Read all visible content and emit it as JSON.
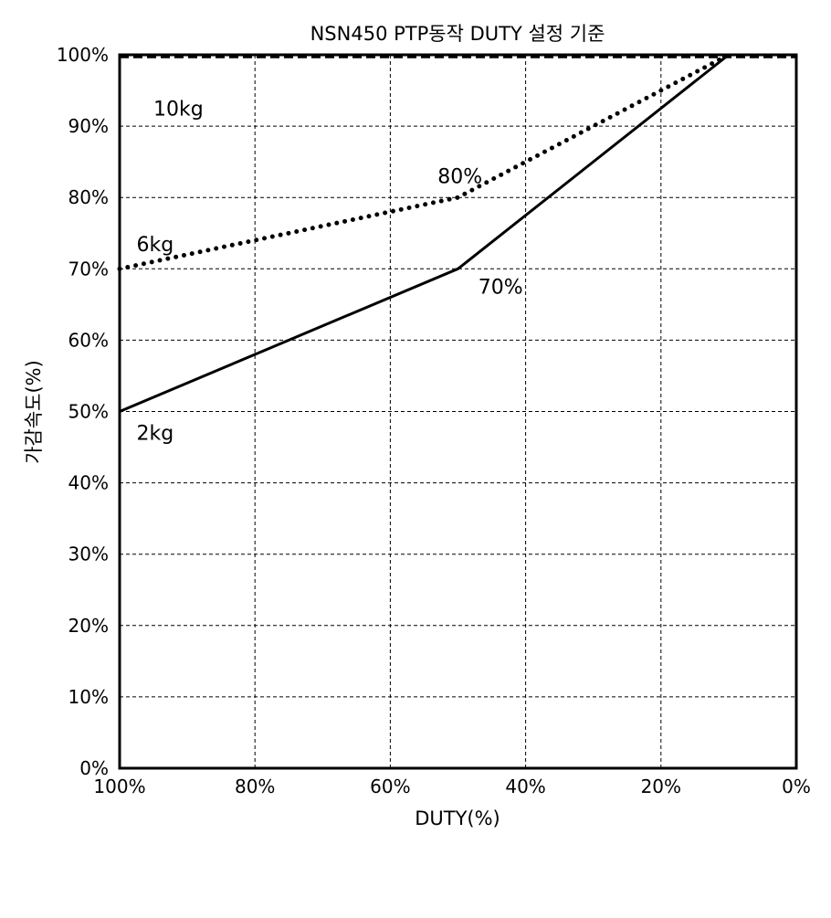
{
  "chart_data": {
    "type": "line",
    "title": "NSN450 PTP동작 DUTY 설정 기준",
    "xlabel": "DUTY(%)",
    "ylabel": "가감속도(%)",
    "xlim": [
      100,
      0
    ],
    "ylim": [
      0,
      100
    ],
    "x_reversed": true,
    "grid": true,
    "x_ticks": [
      100,
      80,
      60,
      40,
      20,
      0
    ],
    "x_tick_labels": [
      "100%",
      "80%",
      "60%",
      "40%",
      "20%",
      "0%"
    ],
    "y_ticks": [
      0,
      10,
      20,
      30,
      40,
      50,
      60,
      70,
      80,
      90,
      100
    ],
    "y_tick_labels": [
      "0%",
      "10%",
      "20%",
      "30%",
      "40%",
      "50%",
      "60%",
      "70%",
      "80%",
      "90%",
      "100%"
    ],
    "series": [
      {
        "name": "10kg",
        "style": "dashed",
        "color": "#000000",
        "points": [
          [
            100,
            99.7
          ],
          [
            0,
            99.7
          ]
        ]
      },
      {
        "name": "6kg",
        "style": "dotted",
        "color": "#000000",
        "points": [
          [
            100,
            70
          ],
          [
            50,
            80
          ],
          [
            10,
            100
          ]
        ]
      },
      {
        "name": "2kg",
        "style": "solid",
        "color": "#000000",
        "points": [
          [
            100,
            50
          ],
          [
            50,
            70
          ],
          [
            10,
            100
          ]
        ]
      }
    ],
    "annotations": [
      {
        "text": "80%",
        "x": 53,
        "y": 82
      },
      {
        "text": "70%",
        "x": 47,
        "y": 66.5
      }
    ]
  }
}
